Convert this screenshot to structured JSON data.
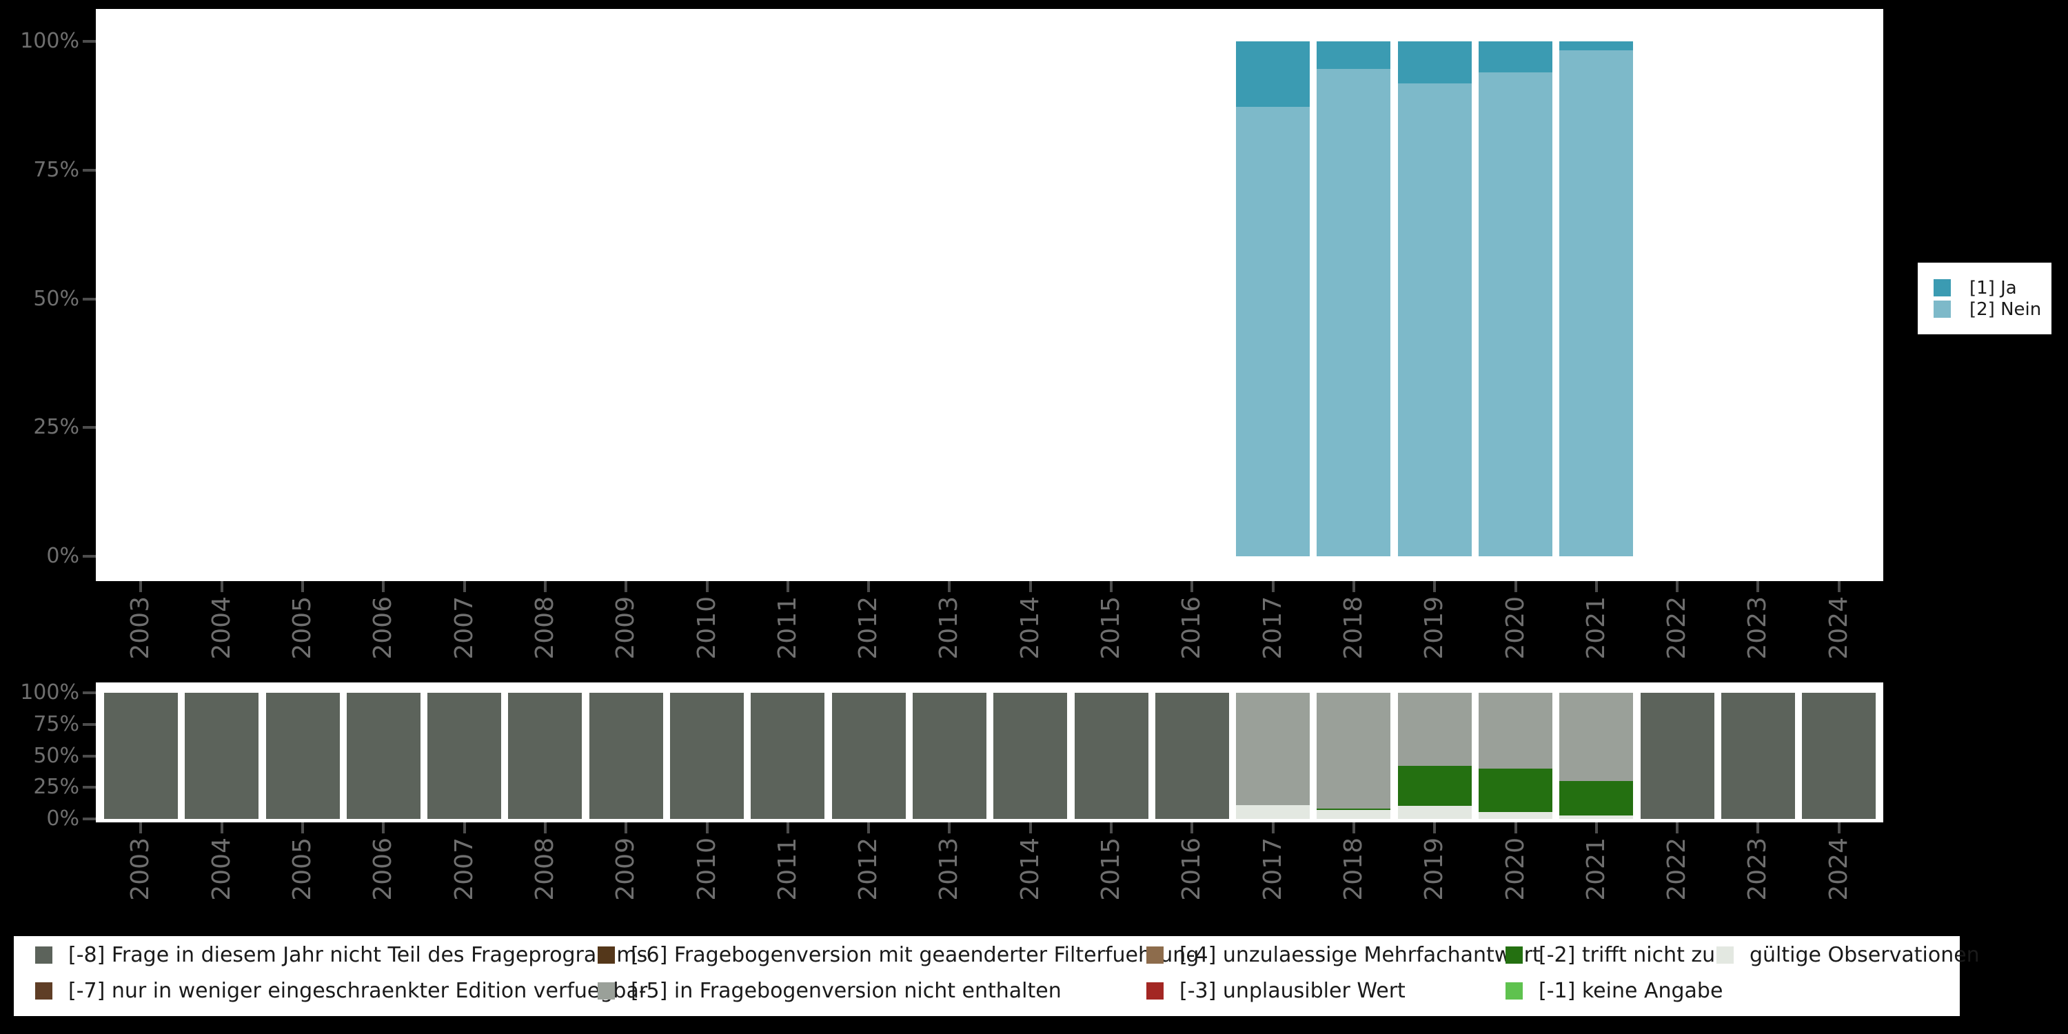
{
  "page": {
    "background": "#000000",
    "panel_background": "#ffffff"
  },
  "axis_style": {
    "label_color": "#6f6f6f",
    "tick_color": "#4d4d4d"
  },
  "chart_data": [
    {
      "type": "bar",
      "stacked": true,
      "title": "",
      "xlabel": "",
      "ylabel": "",
      "ylim": [
        0,
        100
      ],
      "grid": false,
      "ytick_labels": [
        "0%",
        "25%",
        "50%",
        "75%",
        "100%"
      ],
      "categories": [
        "2003",
        "2004",
        "2005",
        "2006",
        "2007",
        "2008",
        "2009",
        "2010",
        "2011",
        "2012",
        "2013",
        "2014",
        "2015",
        "2016",
        "2017",
        "2018",
        "2019",
        "2020",
        "2021",
        "2022",
        "2023",
        "2024"
      ],
      "series": [
        {
          "name": "[2] Nein",
          "color": "#7db9c9",
          "values": [
            0,
            0,
            0,
            0,
            0,
            0,
            0,
            0,
            0,
            0,
            0,
            0,
            0,
            0,
            87.3,
            94.7,
            91.8,
            94.0,
            98.2,
            0,
            0,
            0
          ]
        },
        {
          "name": "[1] Ja",
          "color": "#3b9bb2",
          "values": [
            0,
            0,
            0,
            0,
            0,
            0,
            0,
            0,
            0,
            0,
            0,
            0,
            0,
            0,
            12.7,
            5.3,
            8.2,
            6.0,
            1.8,
            0,
            0,
            0
          ]
        }
      ],
      "legend_position": "right"
    },
    {
      "type": "bar",
      "stacked": true,
      "title": "",
      "xlabel": "",
      "ylabel": "",
      "ylim": [
        0,
        100
      ],
      "grid": false,
      "ytick_labels": [
        "0%",
        "25%",
        "50%",
        "75%",
        "100%"
      ],
      "categories": [
        "2003",
        "2004",
        "2005",
        "2006",
        "2007",
        "2008",
        "2009",
        "2010",
        "2011",
        "2012",
        "2013",
        "2014",
        "2015",
        "2016",
        "2017",
        "2018",
        "2019",
        "2020",
        "2021",
        "2022",
        "2023",
        "2024"
      ],
      "series": [
        {
          "name": "gültige Observationen",
          "color": "#e3e8e1",
          "values": [
            0,
            0,
            0,
            0,
            0,
            0,
            0,
            0,
            0,
            0,
            0,
            0,
            0,
            0,
            11.0,
            7.2,
            10.5,
            5.5,
            2.5,
            0,
            0,
            0
          ]
        },
        {
          "name": "[-1] keine Angabe",
          "color": "#5fc24f",
          "values": [
            0,
            0,
            0,
            0,
            0,
            0,
            0,
            0,
            0,
            0,
            0,
            0,
            0,
            0,
            0,
            0,
            0,
            0,
            0,
            0,
            0,
            0
          ]
        },
        {
          "name": "[-2] trifft nicht zu",
          "color": "#247011",
          "values": [
            0,
            0,
            0,
            0,
            0,
            0,
            0,
            0,
            0,
            0,
            0,
            0,
            0,
            0,
            0,
            1.0,
            31.5,
            34.5,
            27.5,
            0,
            0,
            0
          ]
        },
        {
          "name": "[-3] unplausibler Wert",
          "color": "#a32723",
          "values": [
            0,
            0,
            0,
            0,
            0,
            0,
            0,
            0,
            0,
            0,
            0,
            0,
            0,
            0,
            0,
            0,
            0,
            0,
            0,
            0,
            0,
            0
          ]
        },
        {
          "name": "[-4] unzulaessige Mehrfachantwort",
          "color": "#8d6c4c",
          "values": [
            0,
            0,
            0,
            0,
            0,
            0,
            0,
            0,
            0,
            0,
            0,
            0,
            0,
            0,
            0,
            0,
            0,
            0,
            0,
            0,
            0,
            0
          ]
        },
        {
          "name": "[-5] in Fragebogenversion nicht enthalten",
          "color": "#9aa099",
          "values": [
            0,
            0,
            0,
            0,
            0,
            0,
            0,
            0,
            0,
            0,
            0,
            0,
            0,
            0,
            89.0,
            91.8,
            58.0,
            60.0,
            70.0,
            0,
            0,
            0
          ]
        },
        {
          "name": "[-6] Fragebogenversion mit geaenderter Filterfuehrung",
          "color": "#54371a",
          "values": [
            0,
            0,
            0,
            0,
            0,
            0,
            0,
            0,
            0,
            0,
            0,
            0,
            0,
            0,
            0,
            0,
            0,
            0,
            0,
            0,
            0,
            0
          ]
        },
        {
          "name": "[-7] nur in weniger eingeschraenkter Edition verfuegbar",
          "color": "#5f3e26",
          "values": [
            0,
            0,
            0,
            0,
            0,
            0,
            0,
            0,
            0,
            0,
            0,
            0,
            0,
            0,
            0,
            0,
            0,
            0,
            0,
            0,
            0,
            0
          ]
        },
        {
          "name": "[-8] Frage in diesem Jahr nicht Teil des Frageprogramms",
          "color": "#5c635b",
          "values": [
            100,
            100,
            100,
            100,
            100,
            100,
            100,
            100,
            100,
            100,
            100,
            100,
            100,
            100,
            0,
            0,
            0,
            0,
            0,
            100,
            100,
            100
          ]
        }
      ],
      "legend_position": "bottom"
    }
  ],
  "legend_top": {
    "items": [
      {
        "label": "[1] Ja",
        "color": "#3b9bb2"
      },
      {
        "label": "[2] Nein",
        "color": "#7db9c9"
      }
    ]
  },
  "legend_bottom": {
    "columns": [
      [
        {
          "label": "[-8] Frage in diesem Jahr nicht Teil des Frageprogramms",
          "color": "#5c635b"
        },
        {
          "label": "[-7] nur in weniger eingeschraenkter Edition verfuegbar",
          "color": "#5f3e26"
        }
      ],
      [
        {
          "label": "[-6] Fragebogenversion mit geaenderter Filterfuehrung",
          "color": "#54371a"
        },
        {
          "label": "[-5] in Fragebogenversion nicht enthalten",
          "color": "#9aa099"
        }
      ],
      [
        {
          "label": "[-4] unzulaessige Mehrfachantwort",
          "color": "#8d6c4c"
        },
        {
          "label": "[-3] unplausibler Wert",
          "color": "#a32723"
        }
      ],
      [
        {
          "label": "[-2] trifft nicht zu",
          "color": "#247011"
        },
        {
          "label": "[-1] keine Angabe",
          "color": "#5fc24f"
        }
      ],
      [
        {
          "label": "gültige Observationen",
          "color": "#e3e8e1"
        }
      ]
    ]
  }
}
